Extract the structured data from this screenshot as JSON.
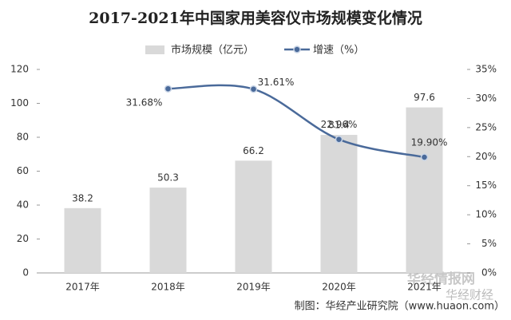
{
  "chart_data": {
    "type": "combo",
    "title": "2017-2021年中国家用美容仪市场规模变化情况",
    "categories": [
      "2017年",
      "2018年",
      "2019年",
      "2020年",
      "2021年"
    ],
    "series": [
      {
        "name": "市场规模（亿元）",
        "type": "bar",
        "color": "#d9d9d9",
        "values": [
          38.2,
          50.3,
          66.2,
          81.4,
          97.6
        ]
      },
      {
        "name": "增速（%）",
        "type": "line",
        "axis": "y2",
        "color": "#4a6a9a",
        "values": [
          null,
          31.68,
          31.61,
          22.96,
          19.9
        ],
        "value_labels": [
          null,
          "31.68%",
          "31.61%",
          "22.96%",
          "19.90%"
        ]
      }
    ],
    "ylim": [
      0,
      120
    ],
    "yticks": [
      0,
      20,
      40,
      60,
      80,
      100,
      120
    ],
    "y2lim": [
      0,
      35
    ],
    "y2ticks": [
      {
        "value": 0,
        "label": "0%"
      },
      {
        "value": 5,
        "label": "5%"
      },
      {
        "value": 10,
        "label": "10%"
      },
      {
        "value": 15,
        "label": "15%"
      },
      {
        "value": 20,
        "label": "20%"
      },
      {
        "value": 25,
        "label": "25%"
      },
      {
        "value": 30,
        "label": "30%"
      },
      {
        "value": 35,
        "label": "35%"
      }
    ],
    "grid": false,
    "legend": "top",
    "source": "制图：华经产业研究院（www.huaon.com）",
    "watermark": [
      "华经情报网",
      "华经财经"
    ]
  }
}
